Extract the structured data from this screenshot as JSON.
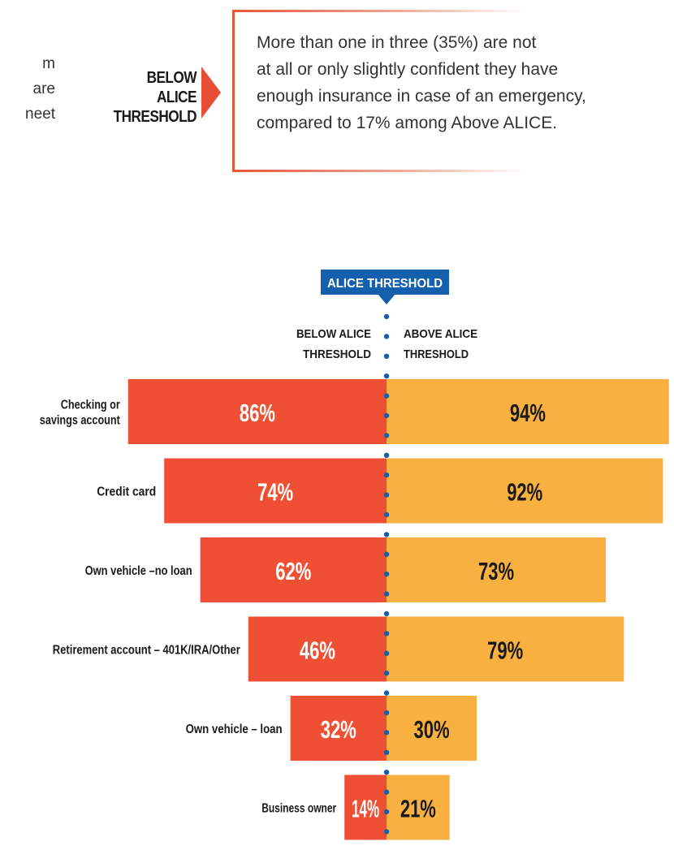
{
  "left_fragment": [
    "m",
    "are",
    "neet"
  ],
  "callout": {
    "label_lines": [
      "BELOW ALICE",
      "THRESHOLD"
    ],
    "text_lines": [
      "More than one in three (35%) are not",
      "at all or only slightly confident they have",
      "enough insurance in case of an emergency,",
      "compared to 17% among Above ALICE."
    ]
  },
  "chart_data": {
    "type": "bar",
    "threshold_label": "ALICE THRESHOLD",
    "side_labels": {
      "below": [
        "BELOW ALICE",
        "THRESHOLD"
      ],
      "above": [
        "ABOVE ALICE",
        "THRESHOLD"
      ]
    },
    "categories": [
      [
        "Checking or",
        "savings account"
      ],
      [
        "Credit card"
      ],
      [
        "Own vehicle –no loan"
      ],
      [
        "Retirement account – 401K/IRA/Other"
      ],
      [
        "Own vehicle – loan"
      ],
      [
        "Business owner"
      ]
    ],
    "series": [
      {
        "name": "BELOW ALICE THRESHOLD",
        "values": [
          86,
          74,
          62,
          46,
          32,
          14
        ],
        "color": "#ef5033"
      },
      {
        "name": "ABOVE ALICE THRESHOLD",
        "values": [
          94,
          92,
          73,
          79,
          30,
          21
        ],
        "color": "#f8b041"
      }
    ],
    "value_suffix": "%",
    "colors": {
      "below_label": "#ffffff",
      "above_label": "#1a1a1a",
      "threshold_banner": "#1460ad",
      "threshold_dots": "#1460ad"
    },
    "xlim": [
      0,
      100
    ]
  }
}
